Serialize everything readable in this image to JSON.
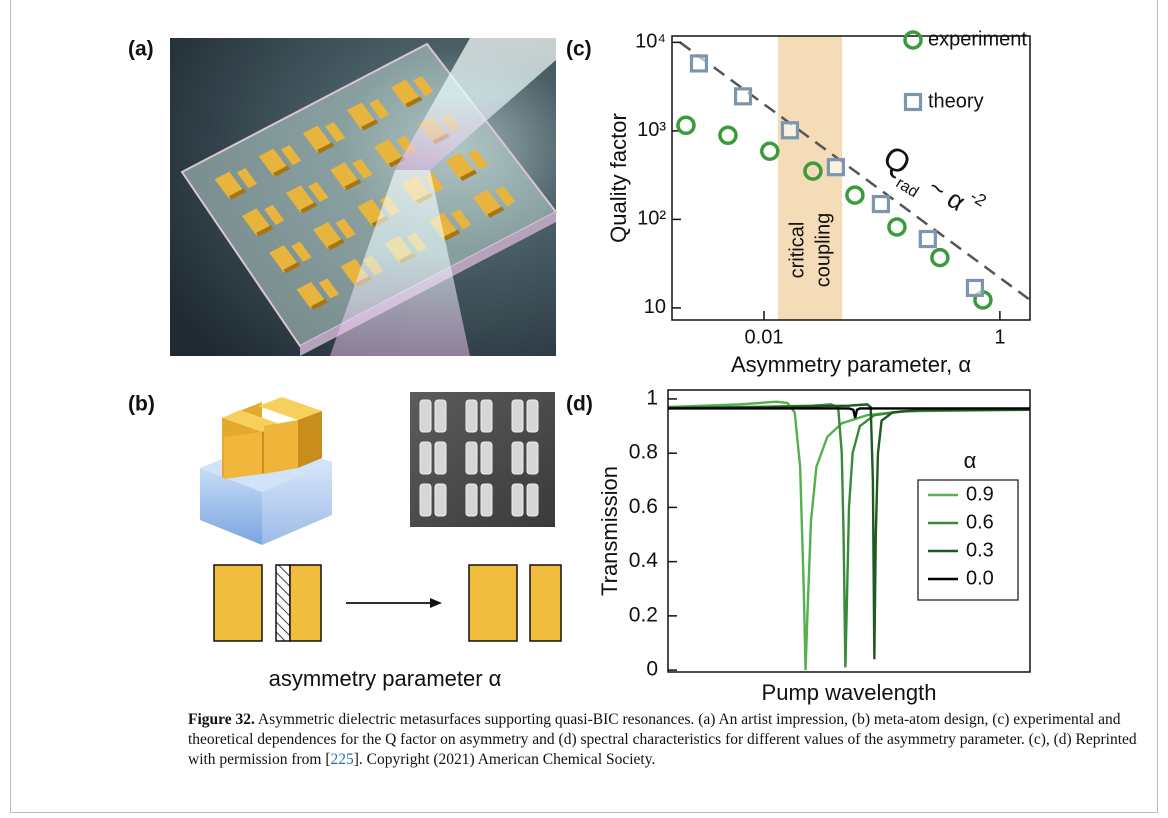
{
  "panel_labels": [
    "(a)",
    "(b)",
    "(c)",
    "(d)"
  ],
  "panel_b": {
    "label": "asymmetry parameter α"
  },
  "chart_data": [
    {
      "type": "scatter",
      "x_label": "Asymmetry parameter, α",
      "y_label": "Quality factor",
      "x_scale": "log",
      "y_scale": "log",
      "xlim": [
        0.00166,
        1.8
      ],
      "ylim": [
        7.3,
        11800
      ],
      "xticks": [
        0.01,
        1
      ],
      "yticks": [
        10,
        {
          "value": 100,
          "label": "10²"
        },
        {
          "value": 1000,
          "label": "10³"
        },
        {
          "value": 10000,
          "label": "10⁴"
        }
      ],
      "legend": "upper right",
      "series": [
        {
          "name": "experiment",
          "color": "#3b9b3b",
          "marker": "circle",
          "x": [
            0.00218,
            0.00495,
            0.0112,
            0.026,
            0.059,
            0.134,
            0.31,
            0.718
          ],
          "values": [
            1156,
            891,
            589,
            351,
            188,
            82,
            37,
            12.3
          ]
        },
        {
          "name": "theory",
          "color": "#7d96ab",
          "marker": "square",
          "x": [
            0.00281,
            0.00664,
            0.0166,
            0.0407,
            0.098,
            0.245,
            0.614
          ],
          "values": [
            5780,
            2455,
            1016,
            389,
            149,
            60,
            16.8
          ]
        }
      ],
      "fit_line": {
        "x": [
          0.00194,
          1.8
        ],
        "values": [
          10000,
          12.3
        ],
        "color": "#555555"
      },
      "shaded_region": {
        "x": [
          0.0131,
          0.046
        ],
        "label": [
          "critical",
          "coupling"
        ],
        "color": "#f4dcb8"
      },
      "annotation": {
        "text": "Q",
        "subscript": "rad",
        "relation": "~ α",
        "exponent": "-2"
      }
    },
    {
      "type": "line",
      "x_label": "Pump wavelength",
      "y_label": "Transmission",
      "xlim": [
        0,
        100
      ],
      "ylim": [
        -0.007,
        1.033
      ],
      "yticks": [
        0,
        0.2,
        0.4,
        0.6,
        0.8,
        1
      ],
      "legend": "right",
      "legend_title": "α",
      "series": [
        {
          "name": "0.9",
          "color": "#55b04f",
          "x": [
            0,
            10,
            20,
            25,
            30,
            33,
            35,
            36.5,
            37.5,
            38,
            38.5,
            39.5,
            41,
            44,
            48,
            55,
            65,
            80,
            100
          ],
          "values": [
            0.97,
            0.975,
            0.98,
            0.985,
            0.99,
            0.985,
            0.95,
            0.75,
            0.3,
            0,
            0.2,
            0.55,
            0.75,
            0.86,
            0.91,
            0.94,
            0.955,
            0.96,
            0.96
          ]
        },
        {
          "name": "0.6",
          "color": "#3a8a3c",
          "x": [
            0,
            20,
            40,
            45,
            47,
            48,
            48.5,
            49,
            49.5,
            50,
            51,
            53,
            57,
            65,
            100
          ],
          "values": [
            0.97,
            0.97,
            0.975,
            0.98,
            0.97,
            0.8,
            0.5,
            0.01,
            0.3,
            0.6,
            0.8,
            0.9,
            0.94,
            0.955,
            0.96
          ]
        },
        {
          "name": "0.3",
          "color": "#1f5a23",
          "x": [
            0,
            30,
            50,
            55,
            56,
            56.6,
            57,
            57.4,
            58,
            59,
            62,
            70,
            100
          ],
          "values": [
            0.965,
            0.97,
            0.975,
            0.98,
            0.97,
            0.7,
            0.04,
            0.5,
            0.8,
            0.92,
            0.95,
            0.96,
            0.96
          ]
        },
        {
          "name": "0.0",
          "color": "#000000",
          "x": [
            0,
            50,
            51.2,
            51.7,
            52.2,
            53,
            100
          ],
          "values": [
            0.965,
            0.965,
            0.96,
            0.93,
            0.96,
            0.965,
            0.965
          ]
        }
      ]
    }
  ],
  "caption": {
    "label": "Figure 32.",
    "text": "Asymmetric dielectric metasurfaces supporting quasi-BIC resonances. (a) An artist impression, (b) meta-atom design, (c) experimental and theoretical dependences for the Q factor on asymmetry and (d) spectral characteristics for different values of the asymmetry parameter. (c), (d) Reprinted with permission from [",
    "ref": "225",
    "text_after": "]. Copyright (2021) American Chemical Society."
  }
}
